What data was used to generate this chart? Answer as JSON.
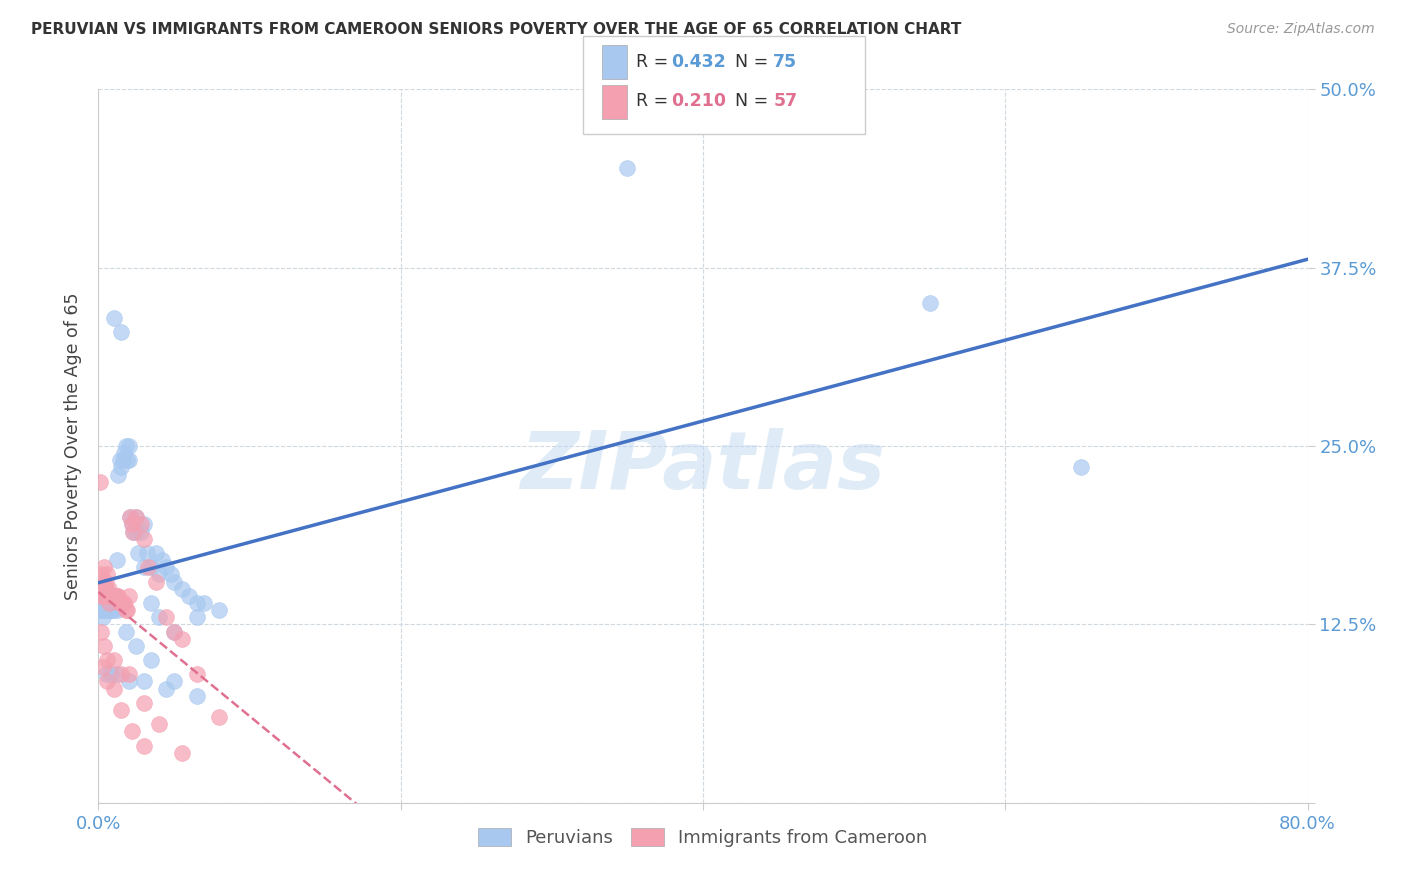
{
  "title": "PERUVIAN VS IMMIGRANTS FROM CAMEROON SENIORS POVERTY OVER THE AGE OF 65 CORRELATION CHART",
  "source": "Source: ZipAtlas.com",
  "ylabel": "Seniors Poverty Over the Age of 65",
  "xlim": [
    0.0,
    0.8
  ],
  "ylim": [
    0.0,
    0.5
  ],
  "peruvian_color": "#A8C8F0",
  "cameroon_color": "#F4A0B0",
  "line_blue": "#4472C4",
  "line_pink": "#E07090",
  "legend_label1": "Peruvians",
  "legend_label2": "Immigrants from Cameroon",
  "watermark": "ZIPatlas",
  "peruvian_x": [
    0.001,
    0.002,
    0.002,
    0.003,
    0.003,
    0.004,
    0.004,
    0.005,
    0.005,
    0.006,
    0.006,
    0.007,
    0.007,
    0.008,
    0.008,
    0.009,
    0.009,
    0.01,
    0.01,
    0.011,
    0.011,
    0.012,
    0.013,
    0.014,
    0.015,
    0.016,
    0.017,
    0.018,
    0.019,
    0.02,
    0.021,
    0.022,
    0.023,
    0.025,
    0.026,
    0.028,
    0.03,
    0.032,
    0.035,
    0.038,
    0.04,
    0.042,
    0.045,
    0.048,
    0.05,
    0.055,
    0.06,
    0.065,
    0.07,
    0.08,
    0.01,
    0.015,
    0.02,
    0.025,
    0.03,
    0.035,
    0.04,
    0.05,
    0.065,
    0.008,
    0.012,
    0.018,
    0.025,
    0.035,
    0.05,
    0.005,
    0.008,
    0.012,
    0.02,
    0.03,
    0.045,
    0.065,
    0.55,
    0.65,
    0.35
  ],
  "peruvian_y": [
    0.135,
    0.14,
    0.135,
    0.14,
    0.13,
    0.14,
    0.135,
    0.15,
    0.14,
    0.14,
    0.135,
    0.14,
    0.135,
    0.135,
    0.14,
    0.14,
    0.135,
    0.145,
    0.135,
    0.145,
    0.145,
    0.17,
    0.23,
    0.24,
    0.235,
    0.24,
    0.245,
    0.25,
    0.24,
    0.24,
    0.2,
    0.195,
    0.19,
    0.19,
    0.175,
    0.19,
    0.195,
    0.175,
    0.165,
    0.175,
    0.16,
    0.17,
    0.165,
    0.16,
    0.155,
    0.15,
    0.145,
    0.14,
    0.14,
    0.135,
    0.34,
    0.33,
    0.25,
    0.2,
    0.165,
    0.14,
    0.13,
    0.12,
    0.13,
    0.14,
    0.135,
    0.12,
    0.11,
    0.1,
    0.085,
    0.09,
    0.09,
    0.09,
    0.085,
    0.085,
    0.08,
    0.075,
    0.35,
    0.235,
    0.445
  ],
  "cameroon_x": [
    0.001,
    0.001,
    0.002,
    0.002,
    0.003,
    0.003,
    0.004,
    0.004,
    0.005,
    0.005,
    0.006,
    0.006,
    0.007,
    0.007,
    0.008,
    0.008,
    0.009,
    0.01,
    0.01,
    0.011,
    0.012,
    0.013,
    0.014,
    0.015,
    0.016,
    0.017,
    0.018,
    0.019,
    0.02,
    0.021,
    0.022,
    0.023,
    0.025,
    0.028,
    0.03,
    0.033,
    0.038,
    0.045,
    0.05,
    0.055,
    0.065,
    0.08,
    0.002,
    0.004,
    0.006,
    0.01,
    0.015,
    0.02,
    0.03,
    0.04,
    0.055,
    0.003,
    0.006,
    0.01,
    0.015,
    0.022,
    0.03
  ],
  "cameroon_y": [
    0.225,
    0.15,
    0.16,
    0.145,
    0.155,
    0.145,
    0.165,
    0.15,
    0.155,
    0.15,
    0.16,
    0.145,
    0.15,
    0.14,
    0.145,
    0.145,
    0.145,
    0.145,
    0.145,
    0.145,
    0.145,
    0.145,
    0.14,
    0.14,
    0.14,
    0.14,
    0.135,
    0.135,
    0.145,
    0.2,
    0.195,
    0.19,
    0.2,
    0.195,
    0.185,
    0.165,
    0.155,
    0.13,
    0.12,
    0.115,
    0.09,
    0.06,
    0.12,
    0.11,
    0.1,
    0.1,
    0.09,
    0.09,
    0.07,
    0.055,
    0.035,
    0.095,
    0.085,
    0.08,
    0.065,
    0.05,
    0.04
  ]
}
